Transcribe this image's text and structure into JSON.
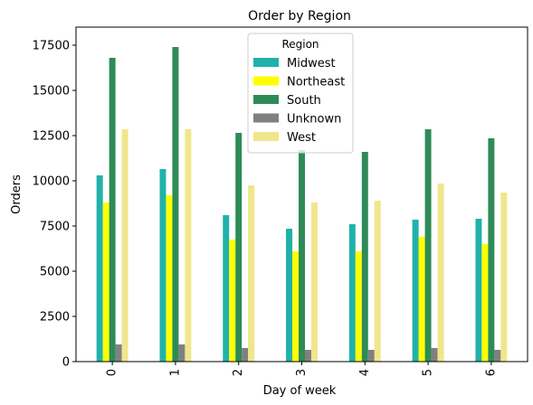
{
  "chart_data": {
    "type": "bar",
    "title": "Order by Region",
    "xlabel": "Day of week",
    "ylabel": "Orders",
    "categories": [
      "0",
      "1",
      "2",
      "3",
      "4",
      "5",
      "6"
    ],
    "ylim": [
      0,
      18500
    ],
    "yticks": [
      0,
      2500,
      5000,
      7500,
      10000,
      12500,
      15000,
      17500
    ],
    "ytick_labels": [
      "0",
      "2500",
      "5000",
      "7500",
      "10000",
      "12500",
      "15000",
      "17500"
    ],
    "xtick_rotation": "vertical",
    "grid": false,
    "legend": {
      "title": "Region",
      "placement": "top-center"
    },
    "series": [
      {
        "name": "Midwest",
        "color": "#20b2aa",
        "values": [
          10300,
          10650,
          8100,
          7350,
          7600,
          7850,
          7900
        ]
      },
      {
        "name": "Northeast",
        "color": "#ffff00",
        "values": [
          8800,
          9200,
          6750,
          6100,
          6100,
          6900,
          6500
        ]
      },
      {
        "name": "South",
        "color": "#2e8b57",
        "values": [
          16800,
          17400,
          12650,
          11700,
          11600,
          12850,
          12350
        ]
      },
      {
        "name": "Unknown",
        "color": "#808080",
        "values": [
          950,
          950,
          750,
          650,
          650,
          750,
          650
        ]
      },
      {
        "name": "West",
        "color": "#f0e68c",
        "values": [
          12850,
          12850,
          9750,
          8800,
          8900,
          9850,
          9350
        ]
      }
    ]
  }
}
